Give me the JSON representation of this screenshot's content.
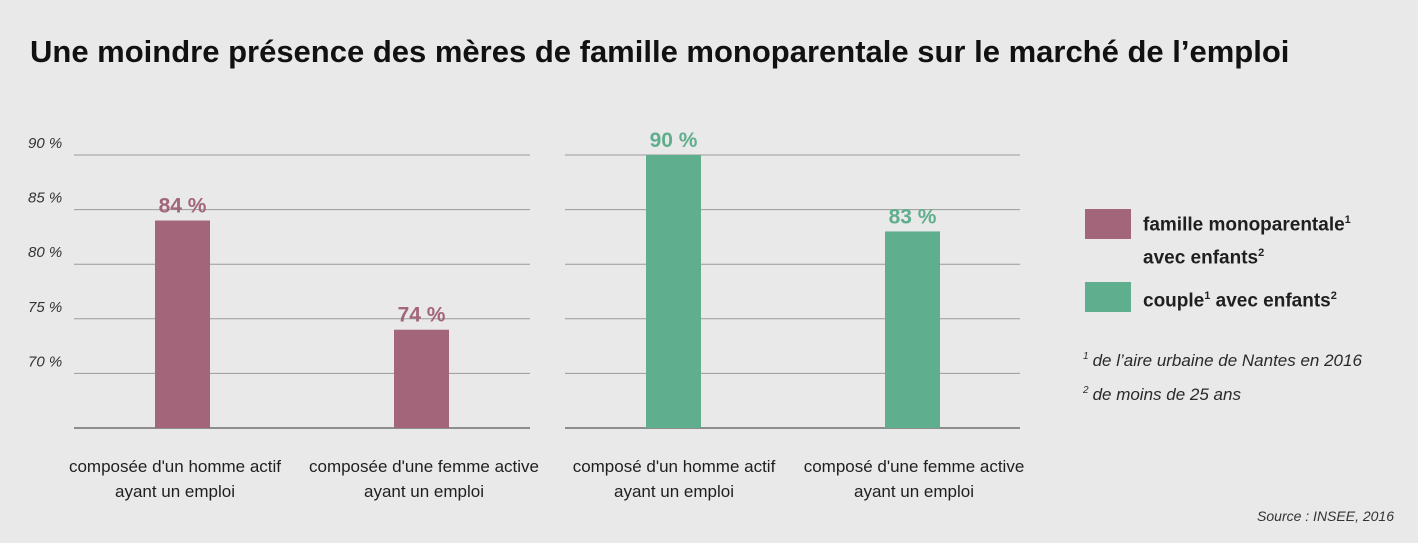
{
  "title": "Une moindre présence des mères de famille monoparentale sur le marché de l’emploi",
  "legend": {
    "items": [
      {
        "label_main": "famille monoparentale",
        "sup1": "1",
        "label_second": "avec enfants",
        "sup2": "2",
        "color": "#a2657a"
      },
      {
        "label_main": "couple",
        "sup1": "1",
        "label_second": "avec enfants",
        "sup2": "2",
        "color": "#5fae8d"
      }
    ]
  },
  "notes": [
    {
      "sup": "1",
      "text": "de l’aire urbaine de Nantes en 2016"
    },
    {
      "sup": "2",
      "text": "de moins de 25 ans"
    }
  ],
  "source": "Source : INSEE, 2016",
  "chart_data": [
    {
      "type": "bar",
      "series_name": "famille monoparentale avec enfants",
      "color": "#a2657a",
      "categories": [
        "composée d'un homme actif ayant un emploi",
        "composée d'une femme active ayant un emploi"
      ],
      "category_lines": [
        [
          "composée d'un homme actif",
          "ayant un emploi"
        ],
        [
          "composée d'une femme active",
          "ayant un emploi"
        ]
      ],
      "values": [
        84,
        74
      ],
      "value_labels": [
        "84 %",
        "74 %"
      ],
      "ylim": [
        65,
        90
      ],
      "yticks": [
        70,
        75,
        80,
        85,
        90
      ],
      "ytick_labels": [
        "70 %",
        "75 %",
        "80 %",
        "85 %",
        "90 %"
      ],
      "grid": true
    },
    {
      "type": "bar",
      "series_name": "couple avec enfants",
      "color": "#5fae8d",
      "categories": [
        "composé d'un homme actif ayant un emploi",
        "composé d'une femme active ayant un emploi"
      ],
      "category_lines": [
        [
          "composé d'un homme actif",
          "ayant un emploi"
        ],
        [
          "composé d'une femme active",
          "ayant un emploi"
        ]
      ],
      "values": [
        90,
        83
      ],
      "value_labels": [
        "90 %",
        "83 %"
      ],
      "ylim": [
        65,
        90
      ],
      "grid": true
    }
  ]
}
